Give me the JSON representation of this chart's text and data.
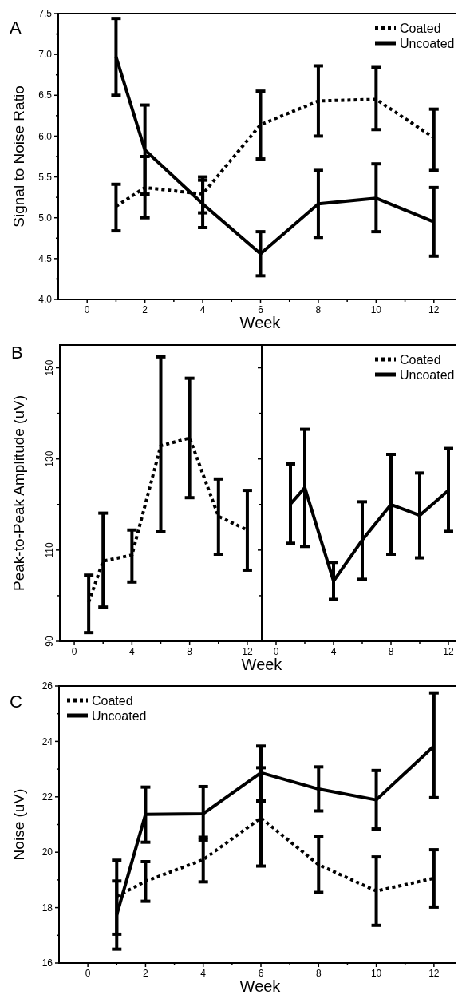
{
  "chart_data": [
    {
      "type": "line",
      "title": "A",
      "xlabel": "Week",
      "ylabel": "Signal to Noise Ratio",
      "x": [
        1,
        2,
        4,
        6,
        8,
        10,
        12
      ],
      "xlim": [
        -1,
        13
      ],
      "xticks": [
        0,
        {
          "value": 1,
          "label": null
        },
        2,
        {
          "value": 3,
          "label": null
        },
        4,
        {
          "value": 5,
          "label": null
        },
        6,
        {
          "value": 7,
          "label": null
        },
        8,
        {
          "value": 9,
          "label": null
        },
        10,
        {
          "value": 11,
          "label": null
        },
        12
      ],
      "ylim": [
        4.0,
        7.5
      ],
      "yticks": [
        {
          "value": 4.0,
          "label": "4.0"
        },
        {
          "value": 4.25,
          "label": null
        },
        {
          "value": 4.5,
          "label": "4.5"
        },
        {
          "value": 4.75,
          "label": null
        },
        {
          "value": 5.0,
          "label": "5.0"
        },
        {
          "value": 5.25,
          "label": null
        },
        {
          "value": 5.5,
          "label": "5.5"
        },
        {
          "value": 5.75,
          "label": null
        },
        {
          "value": 6.0,
          "label": "6.0"
        },
        {
          "value": 6.25,
          "label": null
        },
        {
          "value": 6.5,
          "label": "6.5"
        },
        {
          "value": 6.75,
          "label": null
        },
        {
          "value": 7.0,
          "label": "7.0"
        },
        {
          "value": 7.25,
          "label": null
        },
        {
          "value": 7.5,
          "label": "7.5"
        }
      ],
      "legend": "top right",
      "marker": "none",
      "series": [
        {
          "name": "Coated",
          "color": "#000000",
          "line_style": "dotted",
          "values": [
            5.14,
            5.37,
            5.29,
            6.14,
            6.43,
            6.45,
            5.98
          ],
          "errors": [
            [
              4.84,
              5.41
            ],
            [
              5.0,
              5.75
            ],
            [
              5.06,
              5.5
            ],
            [
              5.72,
              6.55
            ],
            [
              6.0,
              6.86
            ],
            [
              6.08,
              6.84
            ],
            [
              5.58,
              6.33
            ]
          ]
        },
        {
          "name": "Uncoated",
          "color": "#000000",
          "line_style": "solid",
          "values": [
            6.97,
            5.83,
            5.17,
            4.56,
            5.17,
            5.24,
            4.95
          ],
          "errors": [
            [
              6.5,
              7.44
            ],
            [
              5.29,
              6.38
            ],
            [
              4.88,
              5.46
            ],
            [
              4.29,
              4.83
            ],
            [
              4.76,
              5.58
            ],
            [
              4.83,
              5.66
            ],
            [
              4.53,
              5.37
            ]
          ]
        }
      ]
    },
    {
      "type": "line",
      "title": "B",
      "xlabel": "Week",
      "ylabel": "Peak-to-Peak Amplitude (uV)",
      "x": [
        1,
        2,
        4,
        6,
        8,
        10,
        12
      ],
      "xlim": [
        -1,
        13
      ],
      "xticks": [
        0,
        {
          "value": 2,
          "label": null
        },
        4,
        {
          "value": 6,
          "label": null
        },
        8,
        {
          "value": 10,
          "label": null
        },
        12
      ],
      "ylim": [
        90,
        155
      ],
      "yticks": [
        90,
        {
          "value": 100,
          "label": null
        },
        110,
        {
          "value": 120,
          "label": null
        },
        130,
        {
          "value": 140,
          "label": null
        },
        150
      ],
      "legend": false,
      "marker": "none",
      "series": [
        {
          "color": "#000000",
          "line_style": "dotted",
          "values": [
            98.6,
            107.6,
            108.9,
            132.9,
            134.6,
            117.4,
            114.4
          ],
          "errors": [
            [
              91.9,
              104.5
            ],
            [
              97.5,
              118.1
            ],
            [
              103.0,
              114.4
            ],
            [
              114.0,
              152.4
            ],
            [
              121.5,
              147.7
            ],
            [
              109.1,
              125.6
            ],
            [
              105.6,
              123.1
            ]
          ]
        }
      ]
    },
    {
      "type": "line",
      "x": [
        1,
        2,
        4,
        6,
        8,
        10,
        12
      ],
      "xlim": [
        -1,
        13
      ],
      "xticks": [
        0,
        {
          "value": 2,
          "label": null
        },
        4,
        {
          "value": 6,
          "label": null
        },
        8,
        {
          "value": 10,
          "label": null
        },
        12
      ],
      "ylim": [
        90,
        155
      ],
      "yticks": [
        90,
        {
          "value": 100,
          "label": null
        },
        110,
        {
          "value": 120,
          "label": null
        },
        130,
        {
          "value": 140,
          "label": null
        },
        150
      ],
      "tick_labels": "x",
      "legend": "top right",
      "marker": "none",
      "series": [
        {
          "name": "Coated",
          "color": "#000000",
          "line_style": "dotted",
          "values": [
            null,
            null,
            null,
            null,
            null,
            null,
            null
          ]
        },
        {
          "name": "Uncoated",
          "color": "#000000",
          "line_style": "solid",
          "values": [
            120.1,
            123.7,
            103.2,
            112.2,
            120.0,
            117.6,
            123.1
          ],
          "errors": [
            [
              111.5,
              128.9
            ],
            [
              110.8,
              136.5
            ],
            [
              99.2,
              107.3
            ],
            [
              103.6,
              120.6
            ],
            [
              109.1,
              131.0
            ],
            [
              108.3,
              126.9
            ],
            [
              114.1,
              132.3
            ]
          ]
        }
      ]
    },
    {
      "type": "line",
      "title": "C",
      "xlabel": "Week",
      "ylabel": "Noise (uV)",
      "x": [
        1,
        2,
        4,
        6,
        8,
        10,
        12
      ],
      "xlim": [
        -1,
        13
      ],
      "xticks": [
        0,
        {
          "value": 1,
          "label": null
        },
        2,
        {
          "value": 3,
          "label": null
        },
        4,
        {
          "value": 5,
          "label": null
        },
        6,
        {
          "value": 7,
          "label": null
        },
        8,
        {
          "value": 9,
          "label": null
        },
        10,
        {
          "value": 11,
          "label": null
        },
        12
      ],
      "ylim": [
        16,
        26
      ],
      "yticks": [
        16,
        {
          "value": 17,
          "label": null
        },
        18,
        {
          "value": 19,
          "label": null
        },
        20,
        {
          "value": 21,
          "label": null
        },
        22,
        {
          "value": 23,
          "label": null
        },
        24,
        {
          "value": 25,
          "label": null
        },
        26
      ],
      "legend": "top left",
      "marker": "none",
      "series": [
        {
          "name": "Coated",
          "color": "#000000",
          "line_style": "dotted",
          "values": [
            18.41,
            18.95,
            19.73,
            21.24,
            19.55,
            18.6,
            19.06
          ],
          "errors": [
            [
              17.04,
              19.71
            ],
            [
              18.23,
              19.66
            ],
            [
              18.93,
              20.54
            ],
            [
              19.5,
              23.05
            ],
            [
              18.55,
              20.56
            ],
            [
              17.36,
              19.83
            ],
            [
              18.02,
              20.09
            ]
          ]
        },
        {
          "name": "Uncoated",
          "color": "#000000",
          "line_style": "solid",
          "values": [
            17.74,
            21.37,
            21.39,
            22.87,
            22.28,
            21.89,
            23.83
          ],
          "errors": [
            [
              16.5,
              18.96
            ],
            [
              20.36,
              22.35
            ],
            [
              20.44,
              22.37
            ],
            [
              21.85,
              23.83
            ],
            [
              21.49,
              23.08
            ],
            [
              20.84,
              22.95
            ],
            [
              21.97,
              25.75
            ]
          ]
        }
      ]
    }
  ]
}
